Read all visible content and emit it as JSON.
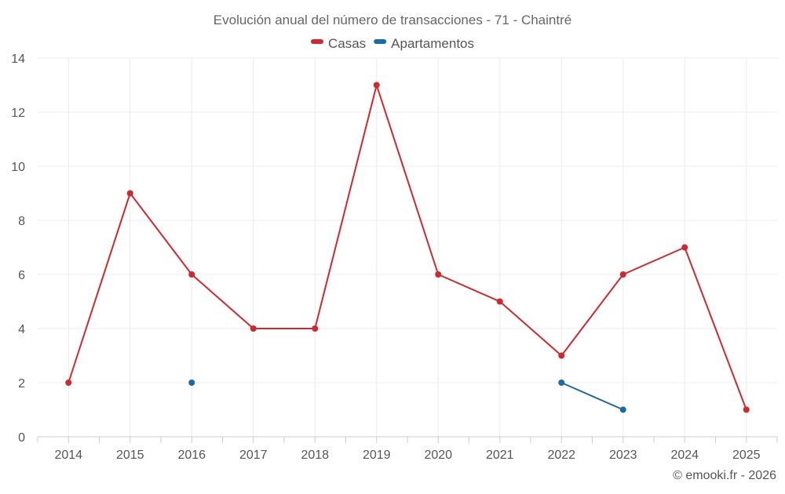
{
  "chart_data": {
    "type": "line",
    "title": "Evolución anual del número de transacciones - 71 - Chaintré",
    "xlabel": "",
    "ylabel": "",
    "categories": [
      "2014",
      "2015",
      "2016",
      "2017",
      "2018",
      "2019",
      "2020",
      "2021",
      "2022",
      "2023",
      "2024",
      "2025"
    ],
    "ylim": [
      0,
      14
    ],
    "yticks": [
      0,
      2,
      4,
      6,
      8,
      10,
      12,
      14
    ],
    "grid": true,
    "legend_position": "top-center",
    "series": [
      {
        "name": "Casas",
        "color": "#d0282e",
        "values": [
          2,
          9,
          6,
          4,
          4,
          13,
          6,
          5,
          3,
          6,
          7,
          1
        ]
      },
      {
        "name": "Apartamentos",
        "color": "#1a6aa6",
        "values": [
          null,
          null,
          2,
          null,
          null,
          null,
          null,
          null,
          2,
          1,
          null,
          null
        ]
      }
    ]
  },
  "credit": "© emooki.fr - 2026"
}
